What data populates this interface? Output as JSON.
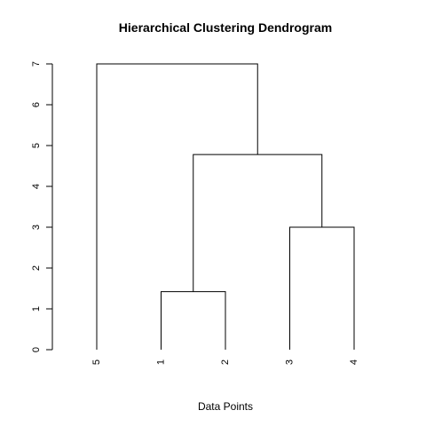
{
  "chart_data": {
    "type": "dendrogram",
    "title": "Hierarchical Clustering Dendrogram",
    "xlabel": "Data Points",
    "ylabel": "",
    "ylim": [
      0,
      7
    ],
    "y_ticks": [
      0,
      1,
      2,
      3,
      4,
      5,
      6,
      7
    ],
    "leaf_order": [
      "5",
      "1",
      "2",
      "3",
      "4"
    ],
    "merges": [
      {
        "left": "1",
        "right": "2",
        "height": 1.42
      },
      {
        "left": "3",
        "right": "4",
        "height": 3.0
      },
      {
        "left": "(1,2)",
        "right": "(3,4)",
        "height": 4.78
      },
      {
        "left": "5",
        "right": "(1,2,3,4)",
        "height": 7.0
      }
    ],
    "grid": false
  }
}
